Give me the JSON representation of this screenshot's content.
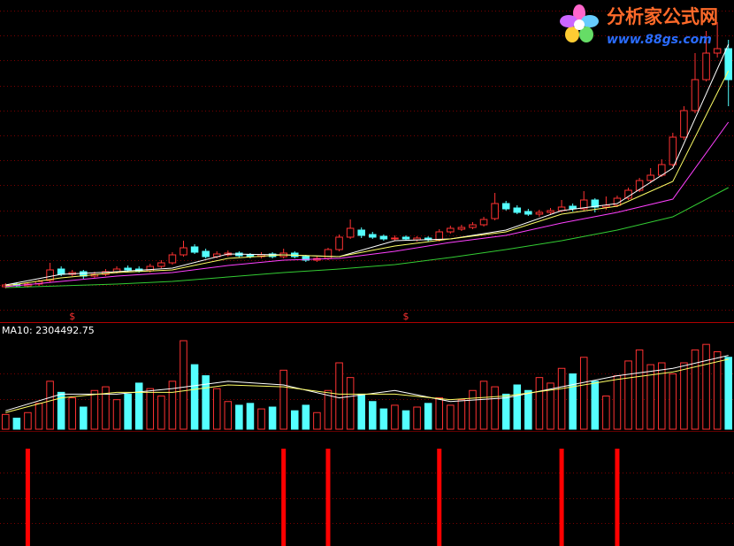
{
  "chart_data": {
    "type": "candlestick",
    "watermark": {
      "title": "分析家公式网",
      "url": "www.88gs.com"
    },
    "volume_label": "MA10: 2304492.75",
    "ylim": [
      0,
      36
    ],
    "up_color": "#ff3232",
    "down_color": "#54ffff",
    "candles": {
      "open": [
        3.6,
        3.9,
        3.7,
        3.9,
        4.3,
        5.6,
        5.0,
        5.3,
        4.8,
        5.0,
        5.3,
        5.7,
        5.6,
        5.4,
        5.9,
        6.3,
        7.2,
        8.1,
        7.6,
        7.0,
        7.2,
        7.4,
        7.2,
        7.0,
        7.3,
        7.0,
        7.4,
        7.0,
        6.6,
        6.8,
        7.8,
        9.2,
        10.0,
        9.5,
        9.3,
        9.0,
        9.2,
        8.9,
        9.1,
        8.9,
        9.8,
        10.1,
        10.3,
        10.6,
        11.3,
        13.0,
        12.5,
        12.1,
        11.8,
        12.0,
        12.2,
        12.7,
        12.4,
        13.4,
        12.6,
        12.8,
        13.6,
        14.5,
        15.6,
        16.2,
        17.4,
        20.5,
        23.5,
        27.0,
        30.0,
        30.5
      ],
      "high": [
        4.0,
        4.1,
        4.1,
        4.4,
        6.3,
        5.9,
        5.5,
        5.5,
        5.3,
        5.6,
        5.9,
        6.0,
        5.9,
        6.2,
        6.6,
        7.5,
        8.8,
        8.4,
        7.9,
        7.6,
        7.7,
        7.6,
        7.4,
        7.5,
        7.5,
        7.9,
        7.6,
        7.2,
        7.0,
        8.0,
        9.5,
        11.2,
        10.3,
        9.8,
        9.5,
        9.4,
        9.4,
        9.3,
        9.3,
        10.1,
        10.5,
        10.6,
        10.9,
        11.5,
        14.2,
        13.3,
        12.8,
        12.4,
        12.3,
        12.5,
        13.4,
        13.0,
        14.4,
        13.6,
        13.8,
        13.9,
        14.8,
        15.9,
        17.0,
        18.0,
        21.0,
        24.0,
        30.0,
        32.5,
        33.5,
        31.5
      ],
      "low": [
        3.4,
        3.5,
        3.5,
        3.7,
        4.1,
        4.8,
        4.8,
        4.5,
        4.6,
        4.8,
        5.1,
        5.3,
        5.2,
        5.2,
        5.7,
        6.1,
        7.0,
        7.3,
        6.8,
        6.8,
        7.0,
        6.9,
        6.8,
        6.8,
        6.8,
        6.8,
        6.8,
        6.4,
        6.4,
        6.6,
        7.6,
        9.0,
        9.1,
        9.0,
        8.8,
        8.8,
        8.8,
        8.7,
        8.7,
        8.7,
        9.6,
        9.9,
        10.1,
        10.4,
        11.1,
        12.2,
        11.8,
        11.6,
        11.5,
        11.8,
        12.0,
        12.1,
        12.2,
        12.0,
        12.3,
        12.6,
        13.4,
        14.3,
        15.3,
        16.0,
        17.2,
        20.2,
        23.2,
        26.8,
        29.5,
        24.0
      ],
      "close": [
        3.8,
        3.7,
        3.9,
        4.2,
        5.5,
        5.0,
        5.2,
        4.8,
        5.0,
        5.3,
        5.6,
        5.5,
        5.4,
        5.9,
        6.3,
        7.2,
        8.0,
        7.5,
        7.0,
        7.3,
        7.4,
        7.1,
        7.0,
        7.2,
        7.0,
        7.4,
        7.0,
        6.6,
        6.8,
        7.8,
        9.2,
        10.2,
        9.4,
        9.2,
        9.0,
        9.1,
        9.0,
        9.1,
        8.9,
        9.8,
        10.2,
        10.3,
        10.6,
        11.2,
        13.0,
        12.4,
        12.0,
        11.8,
        12.0,
        12.2,
        12.6,
        12.4,
        13.4,
        12.6,
        12.8,
        13.6,
        14.5,
        15.6,
        16.2,
        17.4,
        20.5,
        23.5,
        27.0,
        30.0,
        30.5,
        27.0
      ]
    },
    "line_x": [
      0,
      5,
      10,
      15,
      20,
      25,
      30,
      35,
      40,
      45,
      50,
      55,
      60,
      65
    ],
    "lines": [
      {
        "color": "#ffffff",
        "values": [
          3.8,
          5.0,
          5.3,
          5.7,
          7.3,
          7.2,
          7.0,
          8.8,
          9.0,
          10.0,
          12.2,
          13.0,
          17.0,
          31.0
        ]
      },
      {
        "color": "#ffff66",
        "values": [
          3.7,
          4.6,
          5.2,
          5.5,
          6.8,
          7.2,
          7.0,
          8.2,
          9.0,
          9.8,
          11.8,
          12.7,
          15.5,
          28.0
        ]
      },
      {
        "color": "#ff40ff",
        "values": [
          3.6,
          4.2,
          4.8,
          5.2,
          6.0,
          6.6,
          6.8,
          7.6,
          8.6,
          9.4,
          10.8,
          12.0,
          13.5,
          22.2
        ]
      },
      {
        "color": "#33cc33",
        "values": [
          3.5,
          3.7,
          3.9,
          4.2,
          4.7,
          5.2,
          5.6,
          6.1,
          6.9,
          7.8,
          8.8,
          10.0,
          11.5,
          14.8
        ]
      }
    ],
    "volume": {
      "ylim": [
        0,
        4800000
      ],
      "values": [
        800000,
        600000,
        900000,
        1400000,
        2600000,
        2000000,
        1700000,
        1200000,
        2100000,
        2300000,
        1600000,
        1900000,
        2500000,
        2200000,
        1800000,
        2600000,
        4800000,
        3500000,
        2900000,
        2200000,
        1500000,
        1300000,
        1400000,
        1100000,
        1200000,
        3200000,
        1000000,
        1300000,
        900000,
        2100000,
        3600000,
        2800000,
        1900000,
        1500000,
        1100000,
        1300000,
        1000000,
        1200000,
        1400000,
        1700000,
        1300000,
        1600000,
        2100000,
        2600000,
        2300000,
        1900000,
        2400000,
        2100000,
        2800000,
        2500000,
        3300000,
        3000000,
        3900000,
        2600000,
        1800000,
        2900000,
        3700000,
        4300000,
        3500000,
        3600000,
        3000000,
        3600000,
        4300000,
        4600000,
        4200000,
        3900000
      ],
      "lines": [
        {
          "color": "#ffffff",
          "values": [
            1000000,
            1900000,
            1900000,
            2200000,
            2600000,
            2400000,
            1700000,
            2100000,
            1500000,
            1700000,
            2300000,
            2900000,
            3300000,
            4000000
          ]
        },
        {
          "color": "#ffff66",
          "values": [
            900000,
            1700000,
            2000000,
            2000000,
            2400000,
            2300000,
            1900000,
            1900000,
            1600000,
            1800000,
            2200000,
            2700000,
            3100000,
            3800000
          ]
        }
      ]
    },
    "markers": [
      {
        "x": 6,
        "label": "$"
      },
      {
        "x": 36,
        "label": "$"
      }
    ],
    "signals": [
      2,
      25,
      29,
      39,
      50,
      55
    ],
    "signal_color": "#ff0000"
  }
}
